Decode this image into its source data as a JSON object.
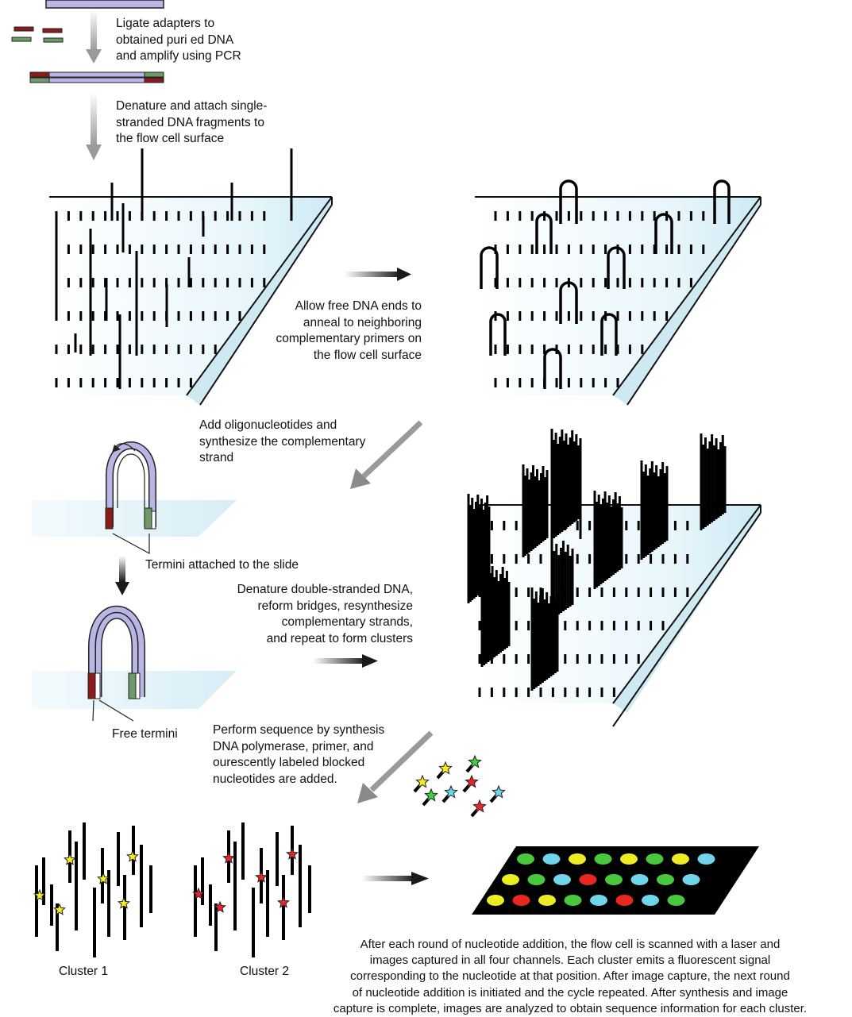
{
  "steps": {
    "ligate": {
      "lines": [
        "Ligate adapters to",
        "obtained puri ed DNA",
        "and amplify using PCR"
      ]
    },
    "denature_attach": {
      "lines": [
        "Denature and attach single-",
        "stranded DNA fragments to",
        "the  flow cell surface"
      ]
    },
    "anneal": {
      "lines": [
        "Allow free DNA ends to",
        "anneal to  neighboring",
        "complementary primers on",
        "the  flow cell surface"
      ]
    },
    "oligos": {
      "lines": [
        "Add oligonucleotides and",
        "synthesize the complementary",
        "strand"
      ]
    },
    "termini_attached": "Termini attached to the slide",
    "denature_repeat": {
      "lines": [
        "Denature double-stranded DNA,",
        "reform bridges, resynthesize",
        "complementary strands,",
        "and repeat to form clusters"
      ]
    },
    "free_termini": "Free termini",
    "sequence_synthesis": {
      "lines": [
        "Perform sequence by synthesis",
        "DNA polymerase, primer, and",
        "ourescently labeled blocked",
        "nucleotides are added."
      ]
    },
    "cluster1": "Cluster 1",
    "cluster2": "Cluster 2",
    "scan": {
      "lines": [
        "After each round of nucleotide addition, the  flow cell is scanned with a laser and",
        "images captured in all four channels. Each cluster emits a  fluorescent signal",
        "corresponding to the nucleotide at that position. After image capture, the next round",
        "of nucleotide addition is initiated and the cycle repeated. After synthesis and image",
        "capture is complete, images are analyzed to obtain sequence information for each cluster."
      ]
    }
  },
  "colors": {
    "dna_strand": "#b9b6e6",
    "adapter_red": "#8b1a1a",
    "adapter_green": "#6e9a6a",
    "flowcell_fill": "#dff1f8",
    "flowcell_edge": "#a9dcee",
    "star_yellow": "#f4ec20",
    "star_red": "#e8262a",
    "star_green": "#3fd23b",
    "star_cyan": "#6fd5ea",
    "dot_green": "#49c83e",
    "dot_cyan": "#6fd5ea",
    "dot_yellow": "#ecec22",
    "dot_red": "#e82820",
    "slide_black": "#000000"
  },
  "scan_slide_dots": [
    [
      "green",
      "cyan",
      "yellow",
      "green",
      "yellow",
      "green",
      "yellow",
      "cyan"
    ],
    [
      "yellow",
      "green",
      "cyan",
      "red",
      "green",
      "cyan",
      "green",
      "cyan"
    ],
    [
      "yellow",
      "red",
      "yellow",
      "green",
      "cyan",
      "red",
      "cyan",
      "green"
    ]
  ],
  "nucleotide_stars": [
    "yellow",
    "yellow",
    "green",
    "green",
    "cyan",
    "red",
    "red",
    "cyan"
  ]
}
